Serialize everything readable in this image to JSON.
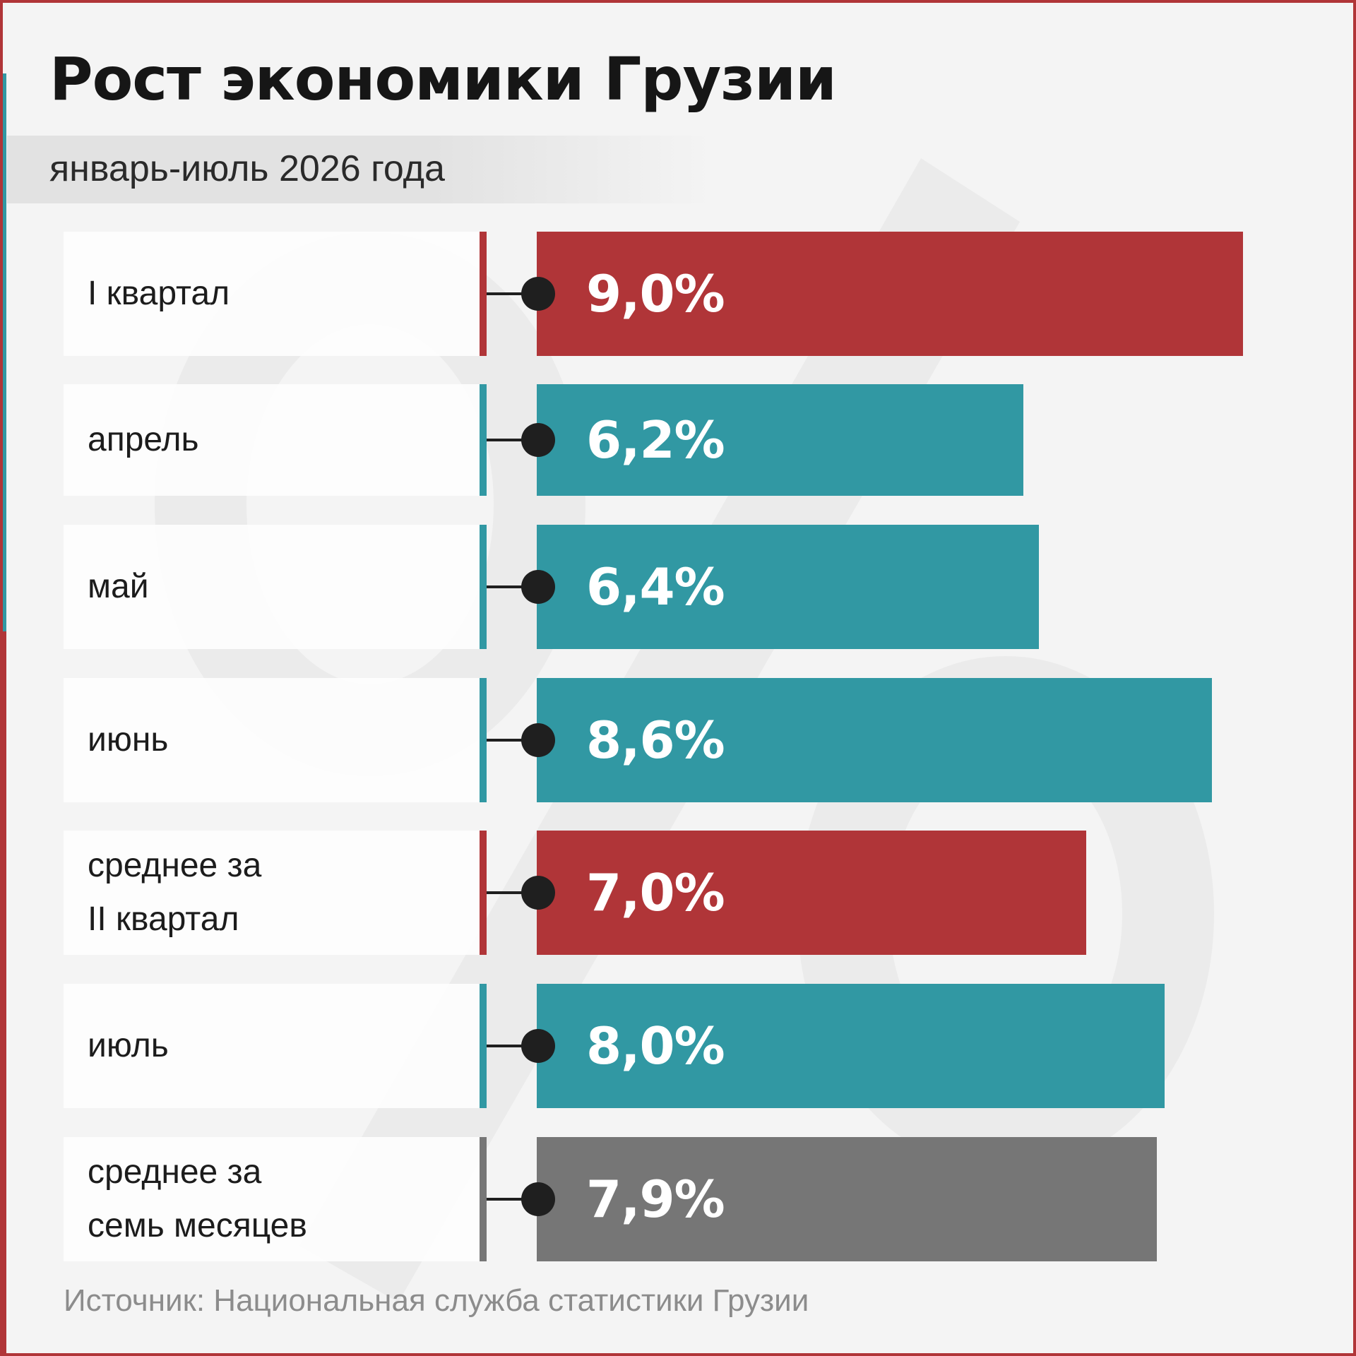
{
  "title": "Рост экономики Грузии",
  "subtitle": "январь-июль 2026 года",
  "source": "Источник: Национальная служба статистики Грузии",
  "colors": {
    "red": "#b03538",
    "teal": "#3198a3",
    "gray": "#767676",
    "background": "#f4f4f4",
    "dark": "#1f1f1f"
  },
  "chart_data": {
    "type": "bar",
    "orientation": "horizontal",
    "unit": "%",
    "categories": [
      "I квартал",
      "апрель",
      "май",
      "июнь",
      "среднее за\nII квартал",
      "июль",
      "среднее за\nсемь месяцев"
    ],
    "values": [
      9.0,
      6.2,
      6.4,
      8.6,
      7.0,
      8.0,
      7.9
    ],
    "value_labels": [
      "9,0%",
      "6,2%",
      "6,4%",
      "8,6%",
      "7,0%",
      "8,0%",
      "7,9%"
    ],
    "bar_colors": [
      "red",
      "teal",
      "teal",
      "teal",
      "red",
      "teal",
      "gray"
    ],
    "xlim": [
      0,
      9.0
    ],
    "grid": false,
    "legend": "none"
  }
}
